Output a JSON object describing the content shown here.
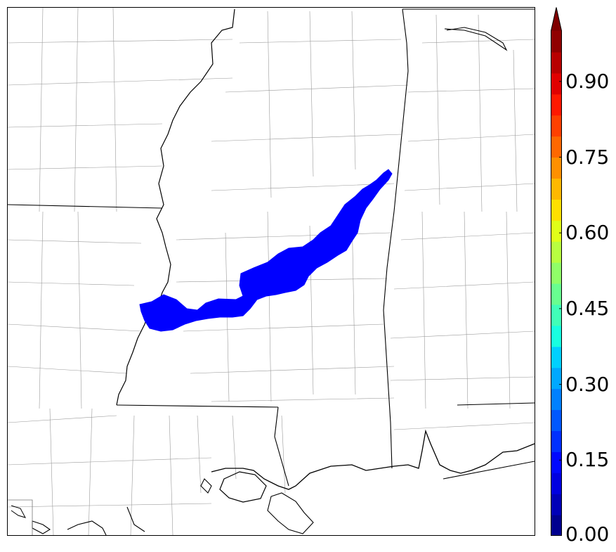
{
  "map": {
    "region": "Mississippi / Alabama / Louisiana Gulf Coast",
    "field_color": "#0000ff",
    "boundary_colors": {
      "state": "#000000",
      "county": "#888888",
      "coast": "#000000"
    }
  },
  "colorbar": {
    "min": 0.0,
    "max": 1.0,
    "extend": "max",
    "colors": [
      "#00008f",
      "#0000b8",
      "#0000e0",
      "#0008ff",
      "#0030ff",
      "#0058ff",
      "#0080ff",
      "#00a8ff",
      "#00d0ff",
      "#18ffe0",
      "#40ffb8",
      "#68ff90",
      "#90ff68",
      "#b8ff40",
      "#e0ff18",
      "#ffe000",
      "#ffb800",
      "#ff9000",
      "#ff6800",
      "#ff4000",
      "#ff1800",
      "#e00000",
      "#b80000",
      "#900000"
    ],
    "extend_color": "#800000",
    "ticks": [
      {
        "value": 0.0,
        "label": "0.00"
      },
      {
        "value": 0.15,
        "label": "0.15"
      },
      {
        "value": 0.3,
        "label": "0.30"
      },
      {
        "value": 0.45,
        "label": "0.45"
      },
      {
        "value": 0.6,
        "label": "0.60"
      },
      {
        "value": 0.75,
        "label": "0.75"
      },
      {
        "value": 0.9,
        "label": "0.90"
      }
    ]
  }
}
